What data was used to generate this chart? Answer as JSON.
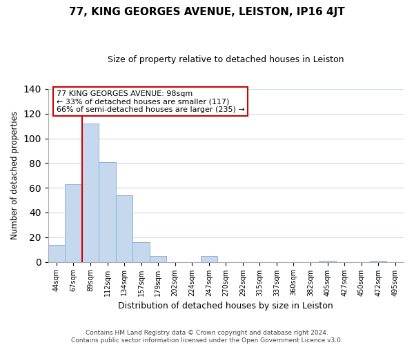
{
  "title": "77, KING GEORGES AVENUE, LEISTON, IP16 4JT",
  "subtitle": "Size of property relative to detached houses in Leiston",
  "xlabel": "Distribution of detached houses by size in Leiston",
  "ylabel": "Number of detached properties",
  "bar_labels": [
    "44sqm",
    "67sqm",
    "89sqm",
    "112sqm",
    "134sqm",
    "157sqm",
    "179sqm",
    "202sqm",
    "224sqm",
    "247sqm",
    "270sqm",
    "292sqm",
    "315sqm",
    "337sqm",
    "360sqm",
    "382sqm",
    "405sqm",
    "427sqm",
    "450sqm",
    "472sqm",
    "495sqm"
  ],
  "bar_values": [
    14,
    63,
    112,
    81,
    54,
    16,
    5,
    0,
    0,
    5,
    0,
    0,
    0,
    0,
    0,
    0,
    1,
    0,
    0,
    1,
    0
  ],
  "bar_color": "#c5d8ee",
  "bar_edge_color": "#8ab4d8",
  "vline_index": 2,
  "vline_color": "#cc0000",
  "annotation_text": "77 KING GEORGES AVENUE: 98sqm\n← 33% of detached houses are smaller (117)\n66% of semi-detached houses are larger (235) →",
  "annotation_box_color": "#ffffff",
  "annotation_box_edge": "#cc0000",
  "ylim": [
    0,
    140
  ],
  "yticks": [
    0,
    20,
    40,
    60,
    80,
    100,
    120,
    140
  ],
  "footnote": "Contains HM Land Registry data © Crown copyright and database right 2024.\nContains public sector information licensed under the Open Government Licence v3.0.",
  "background_color": "#ffffff",
  "grid_color": "#ccd8e8"
}
